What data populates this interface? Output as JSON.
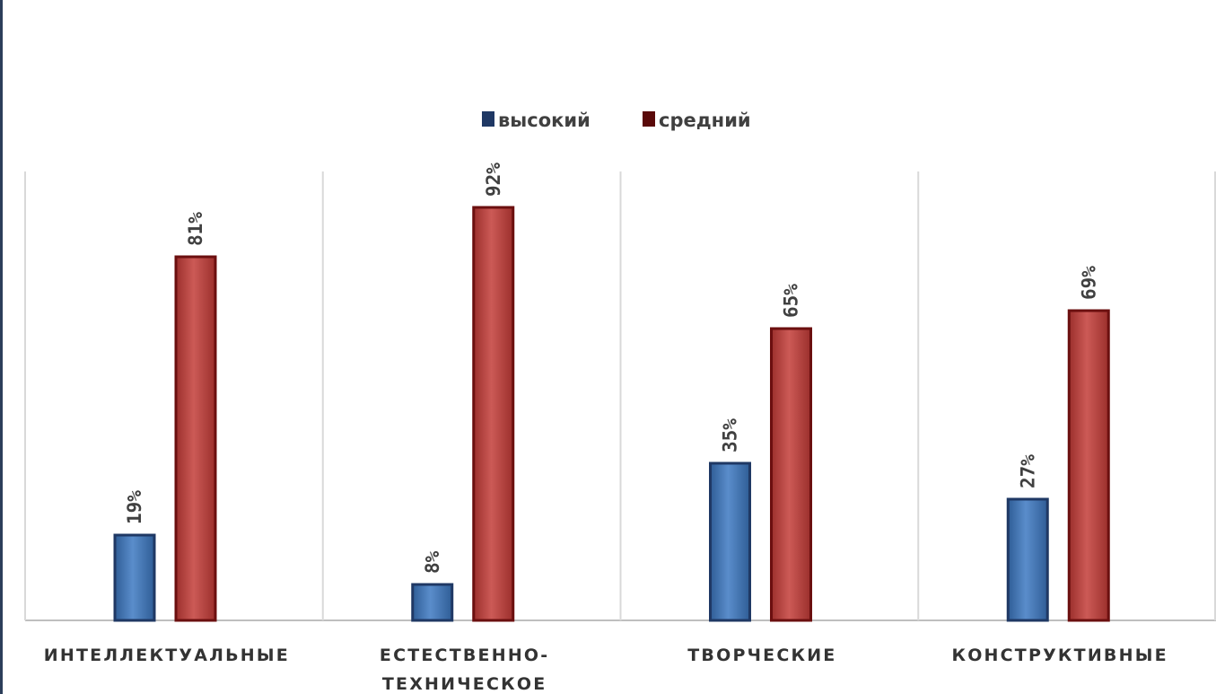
{
  "chart_data": {
    "type": "bar",
    "title": "",
    "categories": [
      [
        "ИНТЕЛЛЕКТУАЛЬНЫЕ"
      ],
      [
        "ЕСТЕСТВЕННО-",
        "ТЕХНИЧЕСКОЕ"
      ],
      [
        "ТВОРЧЕСКИЕ"
      ],
      [
        "КОНСТРУКТИВНЫЕ"
      ]
    ],
    "series": [
      {
        "name": "высокий",
        "values": [
          19,
          8,
          35,
          27
        ],
        "labels": [
          "19%",
          "8%",
          "35%",
          "27%"
        ]
      },
      {
        "name": "средний",
        "values": [
          81,
          92,
          65,
          69
        ],
        "labels": [
          "81%",
          "92%",
          "65%",
          "69%"
        ]
      }
    ],
    "ylim": [
      0,
      100
    ],
    "value_unit": "%",
    "grid": false,
    "category_separators": true,
    "legend_position": "top-center"
  },
  "colors": {
    "series": [
      "#4f81bd",
      "#c0504d"
    ],
    "series_edge": [
      "#1f3864",
      "#6b0f0f"
    ],
    "legend_swatch": [
      "#1f3864",
      "#5a0a0a"
    ],
    "axis": "#bfbfbf",
    "text": "#404040"
  }
}
